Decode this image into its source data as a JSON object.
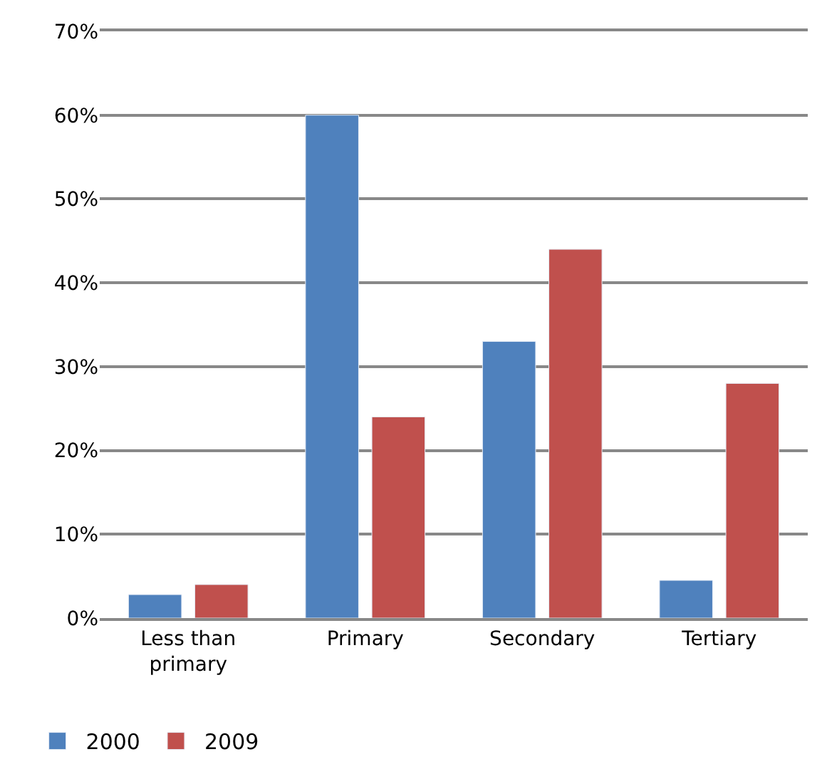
{
  "chart_data": {
    "type": "bar",
    "categories": [
      "Less than primary",
      "Primary",
      "Secondary",
      "Tertiary"
    ],
    "series": [
      {
        "name": "2000",
        "color": "#4f81bd",
        "values": [
          2.8,
          60,
          33,
          4.5
        ]
      },
      {
        "name": "2009",
        "color": "#c0504d",
        "values": [
          4,
          24,
          44,
          28
        ]
      }
    ],
    "ylim": [
      0,
      70
    ],
    "yticks": [
      {
        "value": 0,
        "label": "0%"
      },
      {
        "value": 10,
        "label": "10%"
      },
      {
        "value": 20,
        "label": "20%"
      },
      {
        "value": 30,
        "label": "30%"
      },
      {
        "value": 40,
        "label": "40%"
      },
      {
        "value": 50,
        "label": "50%"
      },
      {
        "value": 60,
        "label": "60%"
      },
      {
        "value": 70,
        "label": "70%"
      }
    ],
    "grid": "y",
    "legend": "bottom left"
  }
}
